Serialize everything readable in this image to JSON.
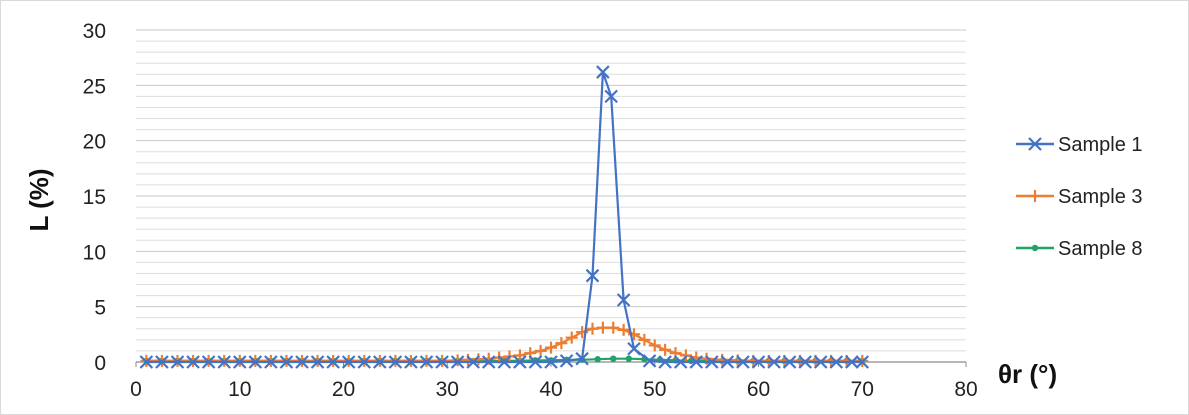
{
  "chart_data": {
    "type": "scatter",
    "title": "",
    "xlabel": "θr (°)",
    "ylabel": "L (%)",
    "xlim": [
      0,
      80
    ],
    "ylim": [
      0,
      30
    ],
    "x_ticks": [
      "0",
      "10",
      "20",
      "30",
      "40",
      "50",
      "60",
      "70",
      "80"
    ],
    "y_ticks": [
      "0",
      "5",
      "10",
      "15",
      "20",
      "25",
      "30"
    ],
    "grid": "horizontal",
    "legend_position": "right",
    "series": [
      {
        "name": "Sample 1",
        "color": "#4472C4",
        "marker": "x",
        "x": [
          1,
          2.5,
          4,
          5.5,
          7,
          8.5,
          10,
          11.5,
          13,
          14.5,
          16,
          17.5,
          19,
          20.5,
          22,
          23.5,
          25,
          26.5,
          28,
          29.5,
          31,
          32.5,
          34,
          35.5,
          37,
          38.5,
          40,
          41.5,
          43,
          44,
          45,
          45.8,
          47,
          48,
          49.5,
          51,
          52.5,
          54,
          55.5,
          57,
          58.5,
          60,
          61.5,
          63,
          64.5,
          66,
          67.5,
          69,
          70
        ],
        "y": [
          0,
          0,
          0,
          0,
          0,
          0,
          0,
          0,
          0,
          0,
          0,
          0,
          0,
          0,
          0,
          0,
          0,
          0,
          0,
          0,
          0,
          0,
          0,
          0,
          0,
          0,
          0,
          0.1,
          0.3,
          7.8,
          26.2,
          24,
          5.6,
          1.2,
          0.1,
          0,
          0,
          0,
          0,
          0,
          0,
          0,
          0,
          0,
          0,
          0,
          0,
          0,
          0
        ]
      },
      {
        "name": "Sample 3",
        "color": "#ED7D31",
        "marker": "plus",
        "x": [
          1,
          2.5,
          4,
          5.5,
          7,
          8.5,
          10,
          11.5,
          13,
          14.5,
          16,
          17.5,
          19,
          20.5,
          22,
          23.5,
          25,
          26.5,
          28,
          29.5,
          31,
          32,
          33,
          34,
          35,
          36,
          37,
          38,
          39,
          40,
          41,
          42,
          43,
          44,
          45,
          46,
          47,
          48,
          49,
          50,
          51,
          52,
          53,
          54,
          55,
          56.5,
          58,
          59.5,
          61,
          62.5,
          64,
          65.5,
          67,
          68.5,
          70
        ],
        "y": [
          0.1,
          0.1,
          0.1,
          0.1,
          0.1,
          0.1,
          0.1,
          0.1,
          0.1,
          0.1,
          0.1,
          0.1,
          0.1,
          0.1,
          0.1,
          0.1,
          0.1,
          0.1,
          0.1,
          0.1,
          0.15,
          0.2,
          0.25,
          0.3,
          0.4,
          0.5,
          0.6,
          0.8,
          1.0,
          1.3,
          1.7,
          2.2,
          2.7,
          3.0,
          3.1,
          3.1,
          2.9,
          2.5,
          2.0,
          1.5,
          1.1,
          0.8,
          0.6,
          0.4,
          0.3,
          0.2,
          0.15,
          0.1,
          0.1,
          0.1,
          0.1,
          0.1,
          0.1,
          0.1,
          0.1
        ]
      },
      {
        "name": "Sample 8",
        "color": "#21A366",
        "marker": "dot",
        "x": [
          1,
          2.5,
          4,
          5.5,
          7,
          8.5,
          10,
          11.5,
          13,
          14.5,
          16,
          17.5,
          19,
          20.5,
          22,
          23.5,
          25,
          26.5,
          28,
          29.5,
          31,
          32.5,
          34,
          35.5,
          37,
          38.5,
          40,
          41.5,
          43,
          44.5,
          46,
          47.5,
          49,
          50.5,
          52,
          53.5,
          55,
          56.5,
          58,
          59.5,
          61,
          62.5,
          64,
          65.5,
          67,
          68.5,
          70
        ],
        "y": [
          0.1,
          0.1,
          0.1,
          0.1,
          0.1,
          0.1,
          0.1,
          0.1,
          0.1,
          0.1,
          0.1,
          0.1,
          0.1,
          0.1,
          0.1,
          0.1,
          0.1,
          0.1,
          0.1,
          0.1,
          0.1,
          0.1,
          0.1,
          0.1,
          0.1,
          0.15,
          0.15,
          0.2,
          0.2,
          0.25,
          0.3,
          0.3,
          0.25,
          0.2,
          0.15,
          0.1,
          0.1,
          0.1,
          0.1,
          0.1,
          0.1,
          0.1,
          0.1,
          0.1,
          0.1,
          0.1,
          0.1
        ]
      }
    ]
  }
}
